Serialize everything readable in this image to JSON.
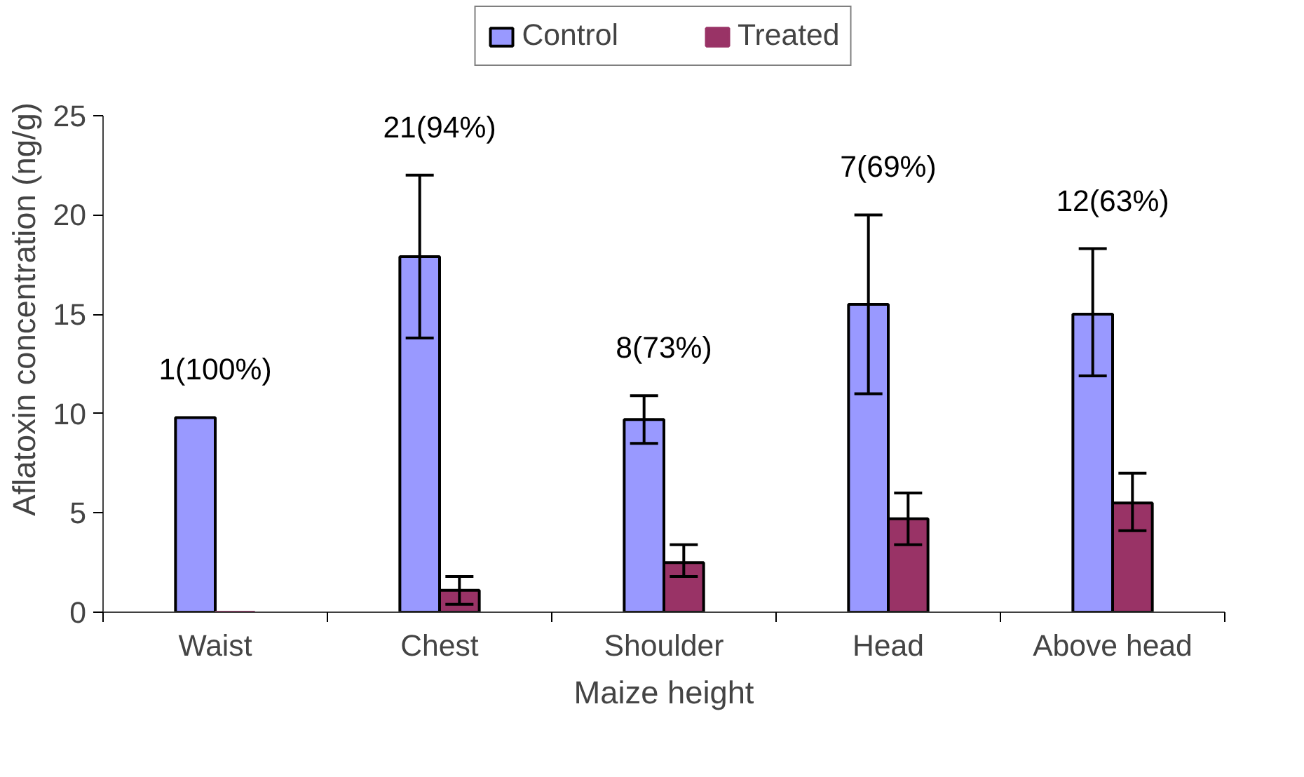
{
  "chart_data": {
    "type": "bar",
    "xlabel": "Maize height",
    "ylabel": "Aflatoxin concentration (ng/g)",
    "categories": [
      "Waist",
      "Chest",
      "Shoulder",
      "Head",
      "Above head"
    ],
    "series": [
      {
        "name": "Control",
        "color": "#9999ff",
        "values": [
          9.8,
          17.9,
          9.7,
          15.5,
          15.0
        ],
        "errors": [
          null,
          [
            13.8,
            22.0
          ],
          [
            8.5,
            10.9
          ],
          [
            11.0,
            20.0
          ],
          [
            11.9,
            18.3
          ]
        ]
      },
      {
        "name": "Treated",
        "color": "#993366",
        "values": [
          0,
          1.1,
          2.5,
          4.7,
          5.5
        ],
        "errors": [
          null,
          [
            0.4,
            1.8
          ],
          [
            1.8,
            3.4
          ],
          [
            3.4,
            6.0
          ],
          [
            4.1,
            7.0
          ]
        ]
      }
    ],
    "ylim": [
      0,
      25
    ],
    "yticks": [
      0,
      5,
      10,
      15,
      20,
      25
    ],
    "grid": false,
    "legend": "top",
    "annotations": [
      "1(100%)",
      "21(94%)",
      "8(73%)",
      "7(69%)",
      "12(63%)"
    ]
  }
}
